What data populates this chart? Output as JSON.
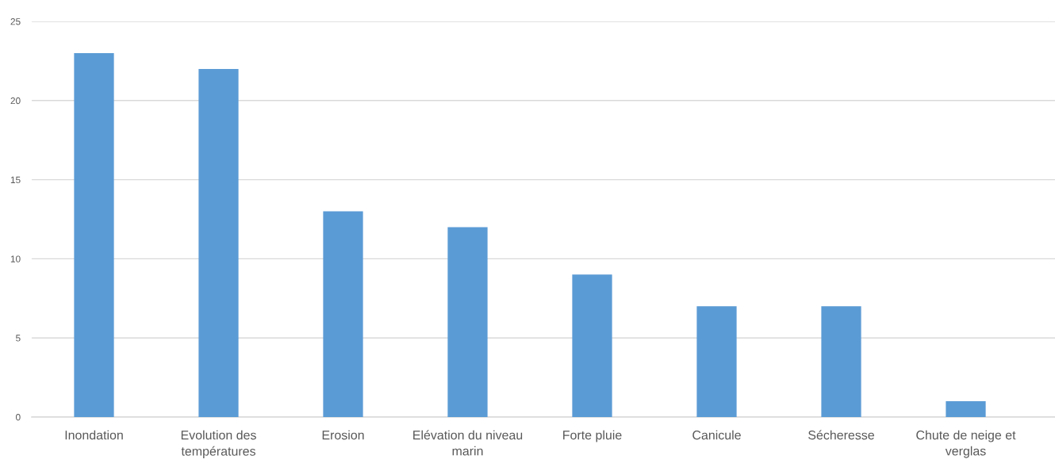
{
  "chart_data": {
    "type": "bar",
    "categories": [
      "Inondation",
      "Evolution des températures",
      "Erosion",
      "Elévation du niveau marin",
      "Forte pluie",
      "Canicule",
      "Sécheresse",
      "Chute de neige et verglas"
    ],
    "values": [
      23,
      22,
      13,
      12,
      9,
      7,
      7,
      1
    ],
    "color": "#5b9bd5",
    "ylim": [
      0,
      25
    ],
    "yticks": [
      0,
      5,
      10,
      15,
      20,
      25
    ],
    "grid": "y",
    "legend": false
  }
}
